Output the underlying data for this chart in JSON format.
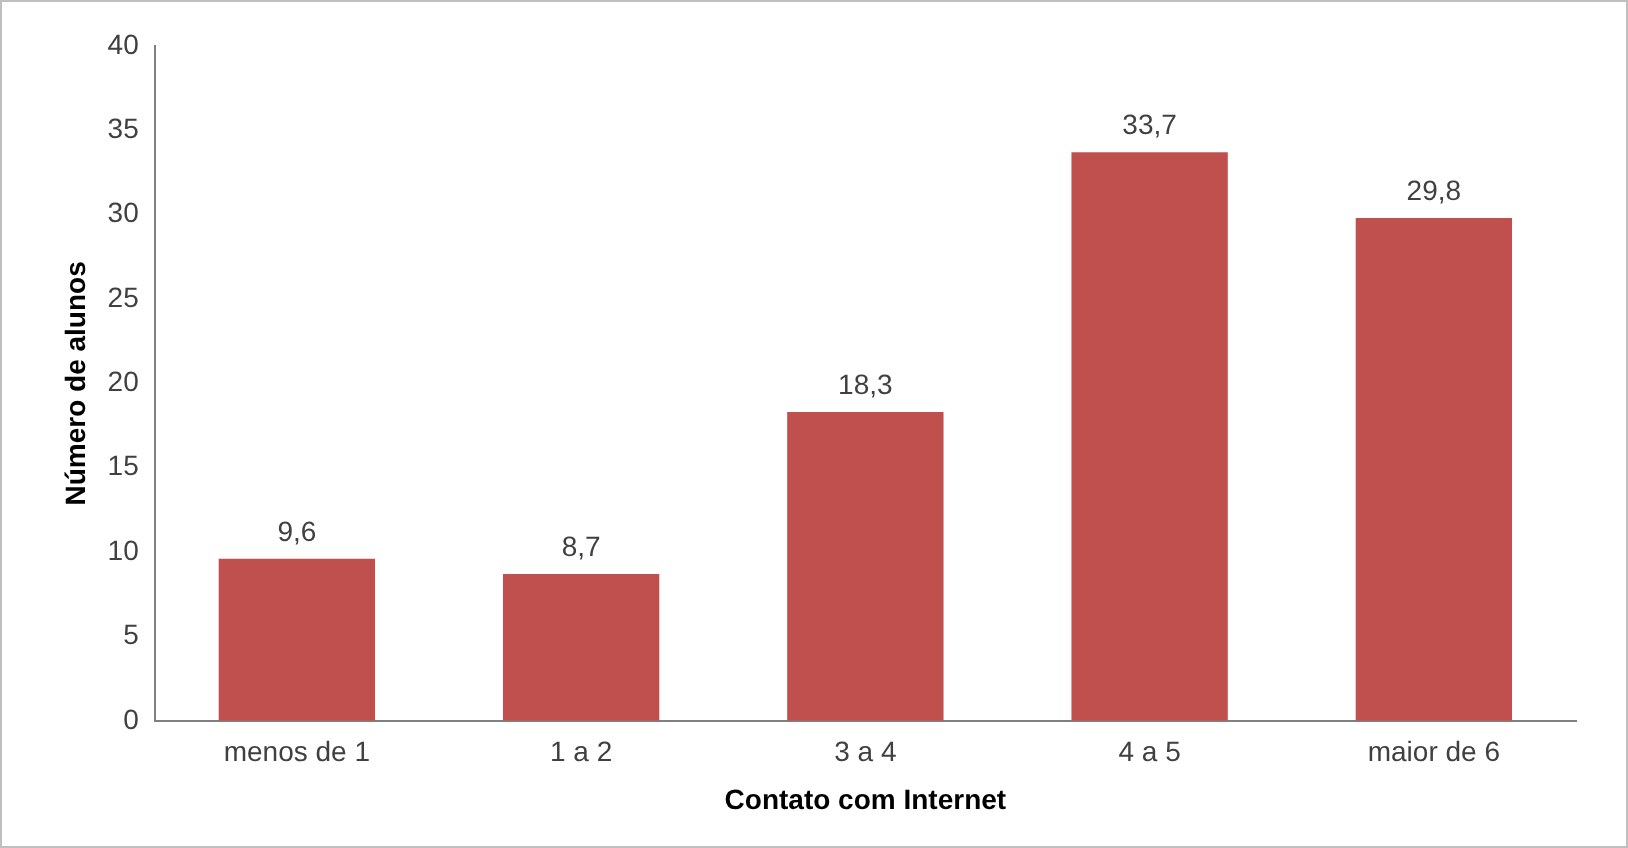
{
  "chart_data": {
    "type": "bar",
    "xlabel": "Contato com Internet",
    "ylabel": "Número de alunos",
    "categories": [
      "menos de 1",
      "1 a 2",
      "3 a 4",
      "4 a 5",
      "maior de 6"
    ],
    "values": [
      9.6,
      8.7,
      18.3,
      33.7,
      29.8
    ],
    "color": "#c0504d",
    "value_labels": [
      "9,6",
      "8,7",
      "18,3",
      "33,7",
      "29,8"
    ],
    "ylim": [
      0,
      40
    ],
    "yticks": [
      0,
      5,
      10,
      15,
      20,
      25,
      30,
      35,
      40
    ],
    "grid": false,
    "legend": false
  }
}
